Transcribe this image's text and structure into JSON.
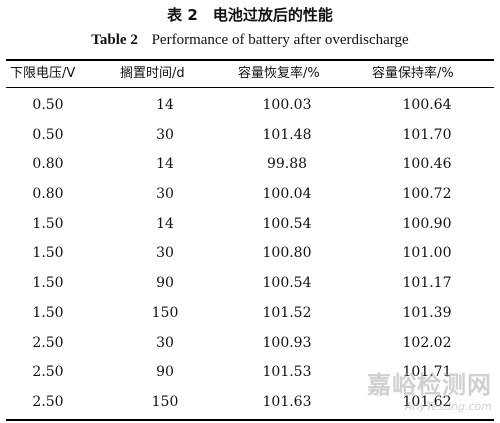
{
  "caption": {
    "cn": "表 2　电池过放后的性能",
    "en_label": "Table 2",
    "en_title": "Performance of battery after overdischarge"
  },
  "table": {
    "headers": [
      "下限电压/V",
      "搁置时间/d",
      "容量恢复率/%",
      "容量保持率/%"
    ],
    "rows": [
      [
        "0.50",
        "14",
        "100.03",
        "100.64"
      ],
      [
        "0.50",
        "30",
        "101.48",
        "101.70"
      ],
      [
        "0.80",
        "14",
        "99.88",
        "100.46"
      ],
      [
        "0.80",
        "30",
        "100.04",
        "100.72"
      ],
      [
        "1.50",
        "14",
        "100.54",
        "100.90"
      ],
      [
        "1.50",
        "30",
        "100.80",
        "101.00"
      ],
      [
        "1.50",
        "90",
        "100.54",
        "101.17"
      ],
      [
        "1.50",
        "150",
        "101.52",
        "101.39"
      ],
      [
        "2.50",
        "30",
        "100.93",
        "102.02"
      ],
      [
        "2.50",
        "90",
        "101.53",
        "101.71"
      ],
      [
        "2.50",
        "150",
        "101.63",
        "101.62"
      ]
    ]
  },
  "watermark": {
    "line1": "嘉峪检测网",
    "line2": "AnyTesting.com"
  }
}
